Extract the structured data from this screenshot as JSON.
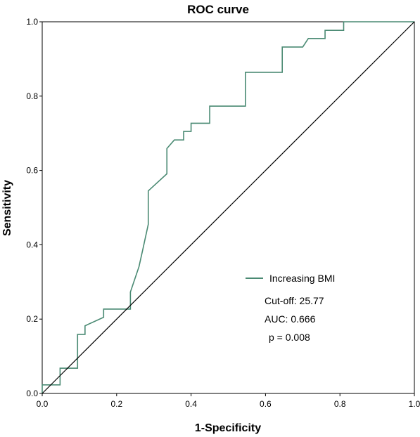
{
  "chart_data": {
    "type": "line",
    "title": "ROC curve",
    "xlabel": "1-Specificity",
    "ylabel": "Sensitivity",
    "xlim": [
      0,
      1
    ],
    "ylim": [
      0,
      1
    ],
    "x_ticks": [
      "0.0",
      "0.2",
      "0.4",
      "0.6",
      "0.8",
      "1.0"
    ],
    "y_ticks": [
      "0.0",
      "0.2",
      "0.4",
      "0.6",
      "0.8",
      "1.0"
    ],
    "grid": false,
    "legend": {
      "position": "lower-right"
    },
    "series": [
      {
        "name": "Increasing BMI",
        "color": "#4a8a73",
        "x": [
          0.0,
          0.0,
          0.048,
          0.048,
          0.095,
          0.095,
          0.115,
          0.115,
          0.165,
          0.165,
          0.237,
          0.237,
          0.26,
          0.27,
          0.28,
          0.285,
          0.285,
          0.335,
          0.335,
          0.355,
          0.38,
          0.38,
          0.4,
          0.4,
          0.45,
          0.45,
          0.546,
          0.546,
          0.645,
          0.645,
          0.7,
          0.715,
          0.76,
          0.76,
          0.81,
          0.81,
          1.0
        ],
        "y": [
          0.0,
          0.023,
          0.023,
          0.068,
          0.068,
          0.159,
          0.159,
          0.182,
          0.205,
          0.227,
          0.227,
          0.273,
          0.341,
          0.386,
          0.432,
          0.455,
          0.545,
          0.591,
          0.659,
          0.682,
          0.682,
          0.705,
          0.705,
          0.727,
          0.727,
          0.773,
          0.773,
          0.864,
          0.864,
          0.932,
          0.932,
          0.955,
          0.955,
          0.977,
          0.977,
          1.0,
          1.0
        ]
      },
      {
        "name": "",
        "color": "#000000",
        "x": [
          0,
          1
        ],
        "y": [
          0,
          1
        ]
      }
    ],
    "annotations": [
      "Cut-off: 25.77",
      "AUC: 0.666",
      "p = 0.008"
    ]
  }
}
